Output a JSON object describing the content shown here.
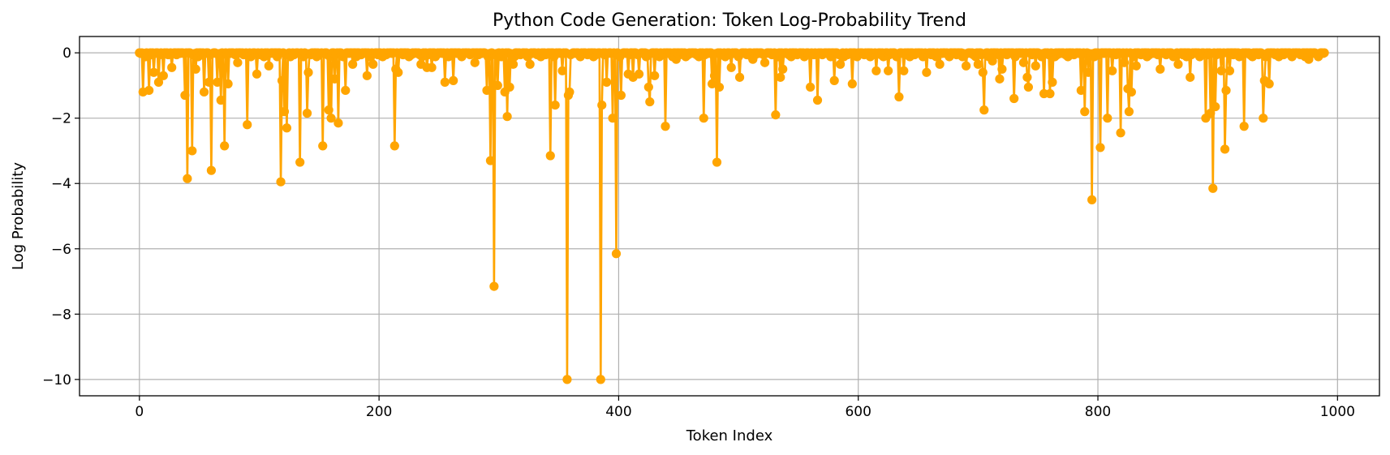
{
  "chart_data": {
    "type": "line",
    "title": "Python Code Generation: Token Log-Probability Trend",
    "xlabel": "Token Index",
    "ylabel": "Log Probability",
    "xlim": [
      -50,
      1035
    ],
    "ylim": [
      -10.5,
      0.5
    ],
    "xticks": [
      0,
      200,
      400,
      600,
      800,
      1000
    ],
    "yticks": [
      0,
      -2,
      -4,
      -6,
      -8,
      -10
    ],
    "grid": true,
    "marker": "circle",
    "series_color": "#ffa500",
    "n_tokens": 990,
    "dips": [
      [
        3,
        -1.2
      ],
      [
        8,
        -1.15
      ],
      [
        12,
        -0.6
      ],
      [
        16,
        -0.9
      ],
      [
        20,
        -0.7
      ],
      [
        27,
        -0.45
      ],
      [
        38,
        -1.3
      ],
      [
        40,
        -3.85
      ],
      [
        44,
        -3.0
      ],
      [
        47,
        -0.5
      ],
      [
        54,
        -1.2
      ],
      [
        58,
        -0.9
      ],
      [
        60,
        -3.6
      ],
      [
        65,
        -0.9
      ],
      [
        68,
        -1.45
      ],
      [
        71,
        -2.85
      ],
      [
        74,
        -0.95
      ],
      [
        82,
        -0.3
      ],
      [
        90,
        -2.2
      ],
      [
        98,
        -0.65
      ],
      [
        108,
        -0.4
      ],
      [
        118,
        -3.95
      ],
      [
        119,
        -0.85
      ],
      [
        121,
        -1.8
      ],
      [
        123,
        -2.3
      ],
      [
        134,
        -3.35
      ],
      [
        140,
        -1.85
      ],
      [
        141,
        -0.6
      ],
      [
        153,
        -2.85
      ],
      [
        158,
        -1.75
      ],
      [
        160,
        -2.0
      ],
      [
        163,
        -0.8
      ],
      [
        166,
        -2.15
      ],
      [
        172,
        -1.15
      ],
      [
        178,
        -0.35
      ],
      [
        190,
        -0.7
      ],
      [
        195,
        -0.35
      ],
      [
        213,
        -2.85
      ],
      [
        214,
        -0.5
      ],
      [
        216,
        -0.6
      ],
      [
        235,
        -0.35
      ],
      [
        240,
        -0.45
      ],
      [
        244,
        -0.45
      ],
      [
        255,
        -0.9
      ],
      [
        262,
        -0.85
      ],
      [
        280,
        -0.3
      ],
      [
        290,
        -1.15
      ],
      [
        293,
        -3.3
      ],
      [
        296,
        -7.15
      ],
      [
        299,
        -1.0
      ],
      [
        305,
        -1.2
      ],
      [
        307,
        -1.95
      ],
      [
        309,
        -1.05
      ],
      [
        312,
        -0.35
      ],
      [
        326,
        -0.35
      ],
      [
        343,
        -3.15
      ],
      [
        347,
        -1.6
      ],
      [
        353,
        -0.55
      ],
      [
        357,
        -10.0
      ],
      [
        358,
        -1.3
      ],
      [
        359,
        -1.2
      ],
      [
        385,
        -10.0
      ],
      [
        386,
        -1.6
      ],
      [
        390,
        -0.9
      ],
      [
        395,
        -2.0
      ],
      [
        398,
        -6.15
      ],
      [
        402,
        -1.3
      ],
      [
        408,
        -0.65
      ],
      [
        412,
        -0.75
      ],
      [
        417,
        -0.65
      ],
      [
        425,
        -1.05
      ],
      [
        426,
        -1.5
      ],
      [
        430,
        -0.7
      ],
      [
        439,
        -2.25
      ],
      [
        448,
        -0.2
      ],
      [
        471,
        -2.0
      ],
      [
        478,
        -0.95
      ],
      [
        480,
        -0.7
      ],
      [
        482,
        -3.35
      ],
      [
        484,
        -1.05
      ],
      [
        494,
        -0.45
      ],
      [
        501,
        -0.75
      ],
      [
        512,
        -0.2
      ],
      [
        522,
        -0.3
      ],
      [
        531,
        -1.9
      ],
      [
        535,
        -0.75
      ],
      [
        537,
        -0.5
      ],
      [
        560,
        -1.05
      ],
      [
        566,
        -1.45
      ],
      [
        580,
        -0.85
      ],
      [
        585,
        -0.35
      ],
      [
        595,
        -0.95
      ],
      [
        615,
        -0.55
      ],
      [
        625,
        -0.55
      ],
      [
        634,
        -1.35
      ],
      [
        638,
        -0.55
      ],
      [
        657,
        -0.6
      ],
      [
        668,
        -0.35
      ],
      [
        690,
        -0.4
      ],
      [
        700,
        -0.35
      ],
      [
        704,
        -0.6
      ],
      [
        705,
        -1.75
      ],
      [
        712,
        -0.25
      ],
      [
        718,
        -0.8
      ],
      [
        720,
        -0.5
      ],
      [
        730,
        -1.4
      ],
      [
        738,
        -0.3
      ],
      [
        741,
        -0.75
      ],
      [
        742,
        -1.05
      ],
      [
        748,
        -0.4
      ],
      [
        755,
        -1.25
      ],
      [
        760,
        -1.25
      ],
      [
        762,
        -0.9
      ],
      [
        786,
        -1.15
      ],
      [
        789,
        -1.8
      ],
      [
        792,
        -0.6
      ],
      [
        795,
        -4.5
      ],
      [
        802,
        -2.9
      ],
      [
        808,
        -2.0
      ],
      [
        812,
        -0.55
      ],
      [
        819,
        -2.45
      ],
      [
        822,
        -0.3
      ],
      [
        825,
        -1.1
      ],
      [
        826,
        -1.8
      ],
      [
        828,
        -1.2
      ],
      [
        832,
        -0.4
      ],
      [
        852,
        -0.5
      ],
      [
        867,
        -0.35
      ],
      [
        877,
        -0.75
      ],
      [
        890,
        -2.0
      ],
      [
        894,
        -1.85
      ],
      [
        896,
        -4.15
      ],
      [
        898,
        -1.65
      ],
      [
        903,
        -0.55
      ],
      [
        906,
        -2.95
      ],
      [
        907,
        -1.15
      ],
      [
        910,
        -0.55
      ],
      [
        922,
        -2.25
      ],
      [
        938,
        -2.0
      ],
      [
        939,
        -0.85
      ],
      [
        943,
        -0.95
      ],
      [
        976,
        -0.2
      ]
    ]
  }
}
